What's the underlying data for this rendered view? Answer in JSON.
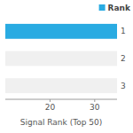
{
  "chart_data": {
    "type": "bar",
    "orientation": "horizontal",
    "categories": [
      "1",
      "2",
      "3"
    ],
    "values": [
      35,
      35,
      35
    ],
    "colors": [
      "#29abe2",
      "#f0f0f0",
      "#f0f0f0"
    ],
    "xlabel": "Signal Rank (Top 50)",
    "xlim": [
      10,
      35
    ],
    "xticks": [
      20,
      30
    ],
    "ylim": [
      -0.5,
      2.5
    ],
    "legend": "upper right",
    "legend_title": "Rank"
  }
}
